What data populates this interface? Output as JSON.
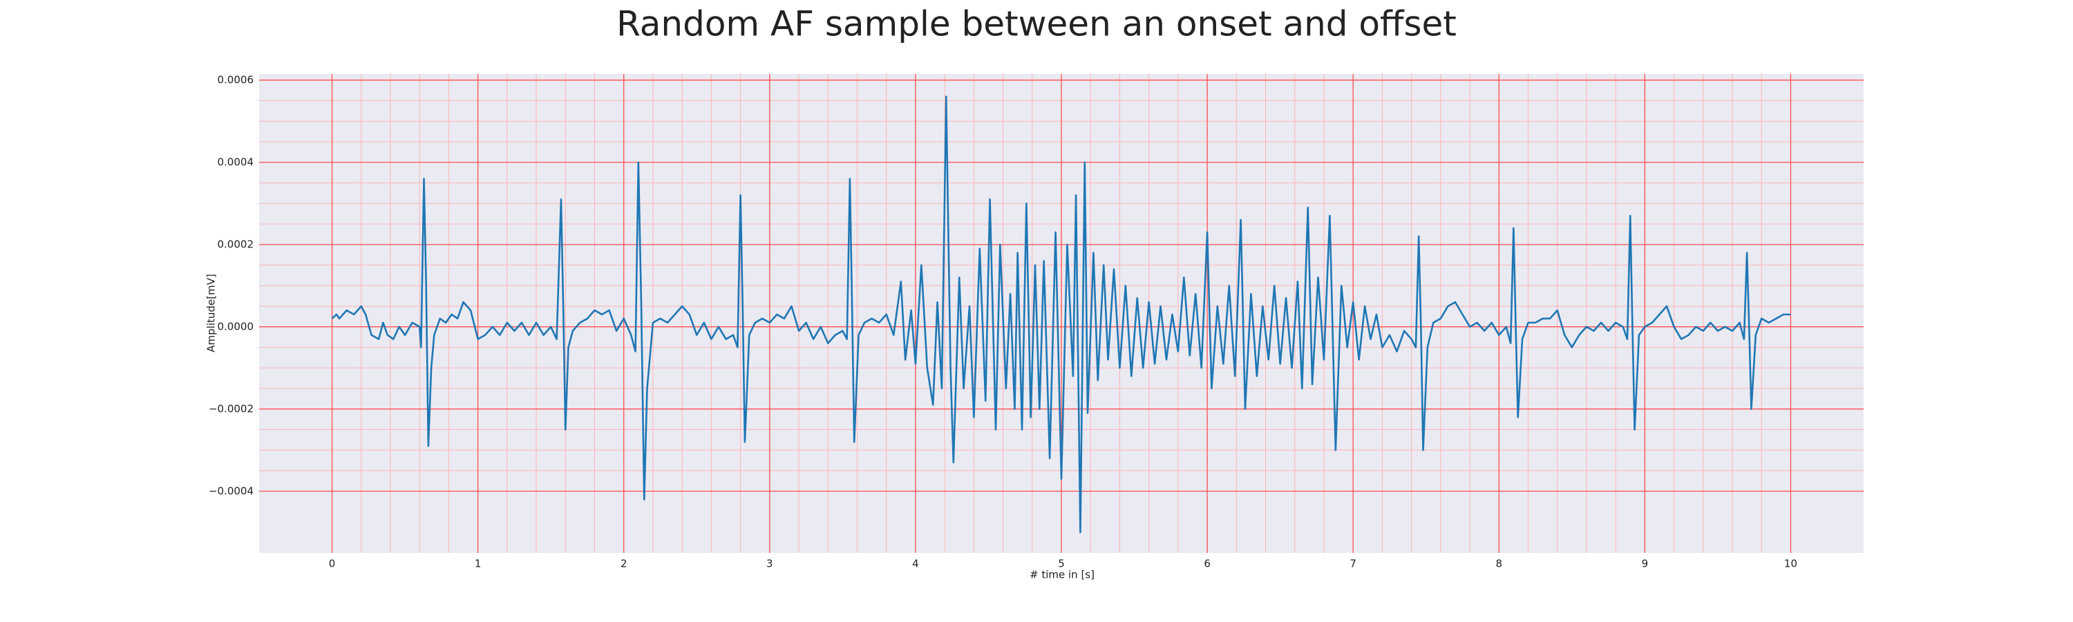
{
  "chart_data": {
    "type": "line",
    "title": "Random AF sample between an onset and offset",
    "xlabel": "# time in [s]",
    "ylabel": "Amplitude[mV]",
    "color": "#1f77b4",
    "grid": true,
    "xlim": [
      -0.5,
      10.5
    ],
    "ylim": [
      -0.00055,
      0.000615
    ],
    "xticks": [
      0,
      1,
      2,
      3,
      4,
      5,
      6,
      7,
      8,
      9,
      10
    ],
    "yticks": [
      {
        "value": -0.0004,
        "label": "−0.0004"
      },
      {
        "value": -0.0002,
        "label": "−0.0002"
      },
      {
        "value": 0,
        "label": "0.0000"
      },
      0.0002,
      0.0004,
      0.0006
    ],
    "x": [
      0.0,
      0.03,
      0.05,
      0.1,
      0.15,
      0.2,
      0.23,
      0.27,
      0.32,
      0.35,
      0.38,
      0.42,
      0.46,
      0.5,
      0.55,
      0.6,
      0.61,
      0.63,
      0.645,
      0.66,
      0.68,
      0.7,
      0.74,
      0.78,
      0.82,
      0.86,
      0.9,
      0.95,
      1.0,
      1.05,
      1.1,
      1.15,
      1.2,
      1.25,
      1.3,
      1.35,
      1.4,
      1.45,
      1.5,
      1.54,
      1.57,
      1.585,
      1.6,
      1.62,
      1.65,
      1.7,
      1.75,
      1.8,
      1.85,
      1.9,
      1.95,
      2.0,
      2.05,
      2.08,
      2.1,
      2.12,
      2.14,
      2.16,
      2.2,
      2.25,
      2.3,
      2.35,
      2.4,
      2.45,
      2.5,
      2.55,
      2.6,
      2.65,
      2.7,
      2.75,
      2.78,
      2.8,
      2.815,
      2.83,
      2.86,
      2.9,
      2.95,
      3.0,
      3.05,
      3.1,
      3.15,
      3.2,
      3.25,
      3.3,
      3.35,
      3.4,
      3.45,
      3.5,
      3.53,
      3.55,
      3.565,
      3.58,
      3.61,
      3.65,
      3.7,
      3.75,
      3.8,
      3.85,
      3.9,
      3.93,
      3.97,
      4.0,
      4.04,
      4.08,
      4.12,
      4.15,
      4.18,
      4.21,
      4.24,
      4.26,
      4.3,
      4.33,
      4.37,
      4.4,
      4.44,
      4.48,
      4.51,
      4.55,
      4.58,
      4.62,
      4.65,
      4.68,
      4.7,
      4.73,
      4.76,
      4.79,
      4.82,
      4.85,
      4.88,
      4.92,
      4.96,
      5.0,
      5.04,
      5.08,
      5.1,
      5.13,
      5.16,
      5.18,
      5.22,
      5.25,
      5.29,
      5.32,
      5.36,
      5.4,
      5.44,
      5.48,
      5.52,
      5.56,
      5.6,
      5.64,
      5.68,
      5.72,
      5.76,
      5.8,
      5.84,
      5.88,
      5.92,
      5.96,
      6.0,
      6.03,
      6.07,
      6.11,
      6.15,
      6.19,
      6.23,
      6.26,
      6.3,
      6.34,
      6.38,
      6.42,
      6.46,
      6.5,
      6.54,
      6.58,
      6.62,
      6.65,
      6.69,
      6.72,
      6.76,
      6.8,
      6.84,
      6.88,
      6.92,
      6.96,
      7.0,
      7.04,
      7.08,
      7.12,
      7.16,
      7.2,
      7.25,
      7.3,
      7.35,
      7.4,
      7.43,
      7.45,
      7.465,
      7.48,
      7.51,
      7.55,
      7.6,
      7.65,
      7.7,
      7.75,
      7.8,
      7.85,
      7.9,
      7.95,
      8.0,
      8.05,
      8.08,
      8.1,
      8.115,
      8.13,
      8.16,
      8.2,
      8.25,
      8.3,
      8.35,
      8.4,
      8.45,
      8.5,
      8.55,
      8.6,
      8.65,
      8.7,
      8.75,
      8.8,
      8.85,
      8.88,
      8.9,
      8.915,
      8.93,
      8.96,
      9.0,
      9.05,
      9.1,
      9.15,
      9.2,
      9.25,
      9.3,
      9.35,
      9.4,
      9.45,
      9.5,
      9.55,
      9.6,
      9.65,
      9.68,
      9.7,
      9.715,
      9.73,
      9.76,
      9.8,
      9.85,
      9.9,
      9.95,
      10.0
    ],
    "values": [
      2e-05,
      3e-05,
      2e-05,
      4e-05,
      3e-05,
      5e-05,
      3e-05,
      -2e-05,
      -3e-05,
      1e-05,
      -2e-05,
      -3e-05,
      0,
      -2e-05,
      1e-05,
      0,
      -5e-05,
      0.00036,
      0.0001,
      -0.00029,
      -0.0001,
      -2e-05,
      2e-05,
      1e-05,
      3e-05,
      2e-05,
      6e-05,
      4e-05,
      -3e-05,
      -2e-05,
      0,
      -2e-05,
      1e-05,
      -1e-05,
      1e-05,
      -2e-05,
      1e-05,
      -2e-05,
      0,
      -3e-05,
      0.00031,
      5e-05,
      -0.00025,
      -5e-05,
      -1e-05,
      1e-05,
      2e-05,
      4e-05,
      3e-05,
      4e-05,
      -1e-05,
      2e-05,
      -2e-05,
      -6e-05,
      0.0004,
      5e-05,
      -0.00042,
      -0.00015,
      1e-05,
      2e-05,
      1e-05,
      3e-05,
      5e-05,
      3e-05,
      -2e-05,
      1e-05,
      -3e-05,
      0,
      -3e-05,
      -2e-05,
      -5e-05,
      0.00032,
      5e-05,
      -0.00028,
      -2e-05,
      1e-05,
      2e-05,
      1e-05,
      3e-05,
      2e-05,
      5e-05,
      -1e-05,
      1e-05,
      -3e-05,
      0,
      -4e-05,
      -2e-05,
      -1e-05,
      -3e-05,
      0.00036,
      5e-05,
      -0.00028,
      -2e-05,
      1e-05,
      2e-05,
      1e-05,
      3e-05,
      -2e-05,
      0.00011,
      -8e-05,
      4e-05,
      -9e-05,
      0.00015,
      -0.0001,
      -0.00019,
      6e-05,
      -0.00015,
      0.00056,
      -0.0001,
      -0.00033,
      0.00012,
      -0.00015,
      5e-05,
      -0.00022,
      0.00019,
      -0.00018,
      0.00031,
      -0.00025,
      0.0002,
      -0.00015,
      8e-05,
      -0.0002,
      0.00018,
      -0.00025,
      0.0003,
      -0.00022,
      0.00015,
      -0.0002,
      0.00016,
      -0.00032,
      0.00023,
      -0.00037,
      0.0002,
      -0.00012,
      0.00032,
      -0.0005,
      0.0004,
      -0.00021,
      0.00018,
      -0.00013,
      0.00015,
      -8e-05,
      0.00014,
      -0.0001,
      0.0001,
      -0.00012,
      7e-05,
      -0.0001,
      6e-05,
      -9e-05,
      5e-05,
      -8e-05,
      3e-05,
      -6e-05,
      0.00012,
      -7e-05,
      8e-05,
      -0.0001,
      0.00023,
      -0.00015,
      5e-05,
      -9e-05,
      0.0001,
      -0.00012,
      0.00026,
      -0.0002,
      8e-05,
      -0.00012,
      5e-05,
      -8e-05,
      0.0001,
      -9e-05,
      7e-05,
      -0.0001,
      0.00011,
      -0.00015,
      0.00029,
      -0.00014,
      0.00012,
      -8e-05,
      0.00027,
      -0.0003,
      0.0001,
      -5e-05,
      6e-05,
      -8e-05,
      5e-05,
      -3e-05,
      3e-05,
      -5e-05,
      -2e-05,
      -6e-05,
      -1e-05,
      -3e-05,
      -5e-05,
      0.00022,
      0,
      -0.0003,
      -5e-05,
      1e-05,
      2e-05,
      5e-05,
      6e-05,
      3e-05,
      0,
      1e-05,
      -1e-05,
      1e-05,
      -2e-05,
      0,
      -4e-05,
      0.00024,
      0,
      -0.00022,
      -3e-05,
      1e-05,
      1e-05,
      2e-05,
      2e-05,
      4e-05,
      -2e-05,
      -5e-05,
      -2e-05,
      0,
      -1e-05,
      1e-05,
      -1e-05,
      1e-05,
      0,
      -3e-05,
      0.00027,
      0,
      -0.00025,
      -2e-05,
      0,
      1e-05,
      3e-05,
      5e-05,
      0,
      -3e-05,
      -2e-05,
      0,
      -1e-05,
      1e-05,
      -1e-05,
      0,
      -1e-05,
      1e-05,
      -3e-05,
      0.00018,
      0,
      -0.0002,
      -2e-05,
      2e-05,
      1e-05,
      2e-05,
      3e-05,
      3e-05
    ]
  }
}
